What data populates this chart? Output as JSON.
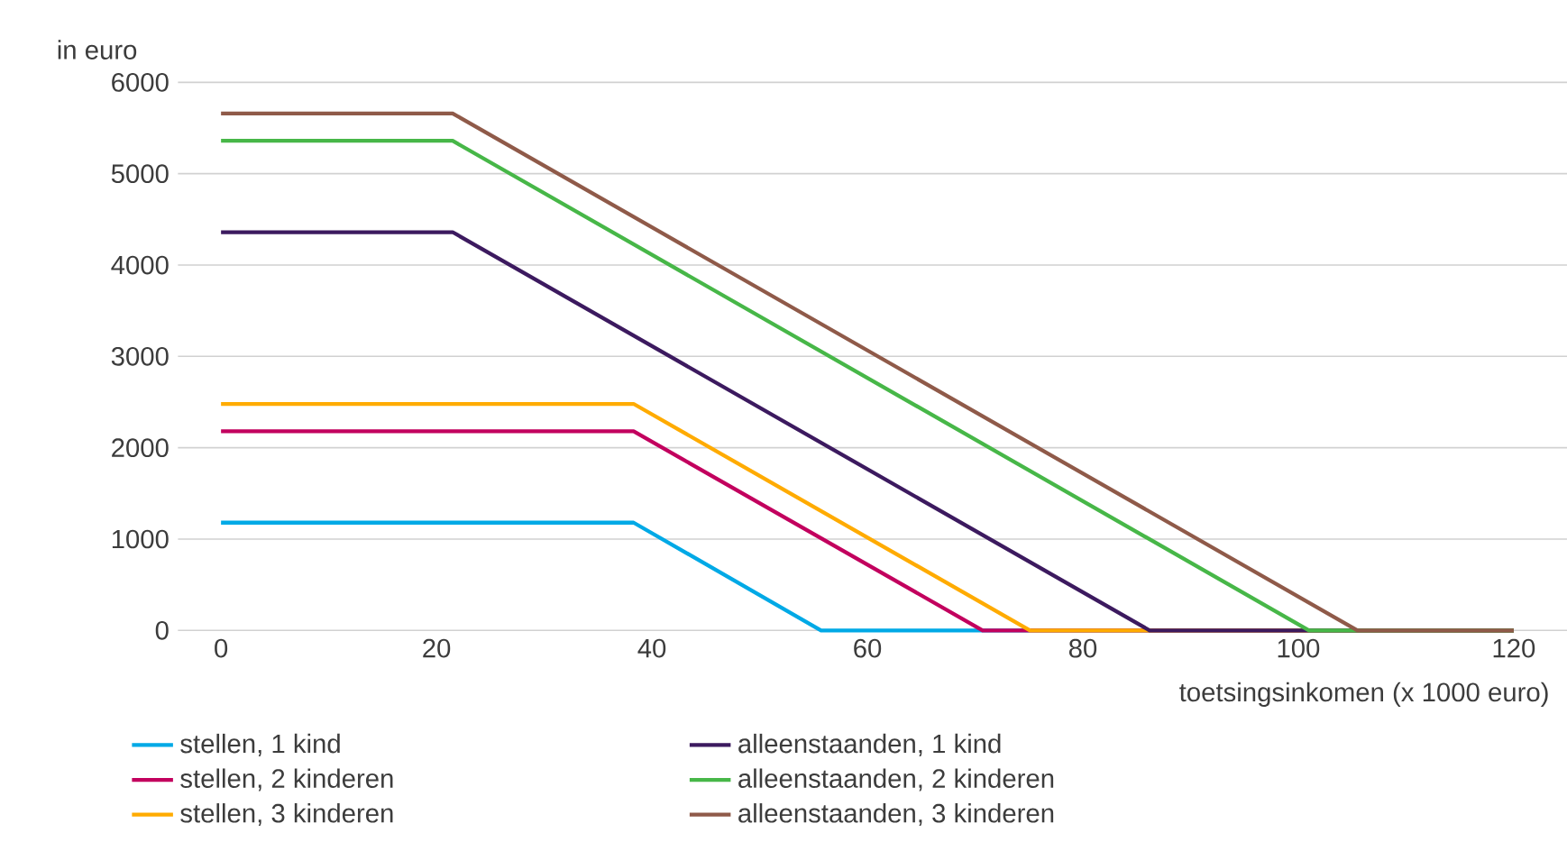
{
  "chart_data": {
    "type": "line",
    "ylabel": "in euro",
    "xlabel": "toetsingsinkomen (x 1000 euro)",
    "xlim": [
      -4,
      125
    ],
    "ylim": [
      0,
      6000
    ],
    "xticks": [
      0,
      20,
      40,
      60,
      80,
      100,
      120
    ],
    "yticks": [
      0,
      1000,
      2000,
      3000,
      4000,
      5000,
      6000
    ],
    "grid": "y",
    "legend": "bottom",
    "marker": "none",
    "line_style": "solid",
    "series": [
      {
        "name": "stellen, 1 kind",
        "color": "#00a9e6",
        "x": [
          0,
          38.3,
          55.7,
          120
        ],
        "values": [
          1180,
          1180,
          0,
          0
        ]
      },
      {
        "name": "stellen, 2 kinderen",
        "color": "#c2005e",
        "x": [
          0,
          38.3,
          70.7,
          120
        ],
        "values": [
          2180,
          2180,
          0,
          0
        ]
      },
      {
        "name": "stellen, 3 kinderen",
        "color": "#ffab00",
        "x": [
          0,
          38.3,
          75.1,
          120
        ],
        "values": [
          2480,
          2480,
          0,
          0
        ]
      },
      {
        "name": "alleenstaanden, 1 kind",
        "color": "#3c1a5f",
        "x": [
          0,
          21.5,
          86.2,
          120
        ],
        "values": [
          4360,
          4360,
          0,
          0
        ]
      },
      {
        "name": "alleenstaanden, 2 kinderen",
        "color": "#47b748",
        "x": [
          0,
          21.5,
          101,
          120
        ],
        "values": [
          5360,
          5360,
          0,
          0
        ]
      },
      {
        "name": "alleenstaanden, 3 kinderen",
        "color": "#8f5a49",
        "x": [
          0,
          21.5,
          105.5,
          120
        ],
        "values": [
          5660,
          5660,
          0,
          0
        ]
      }
    ]
  }
}
